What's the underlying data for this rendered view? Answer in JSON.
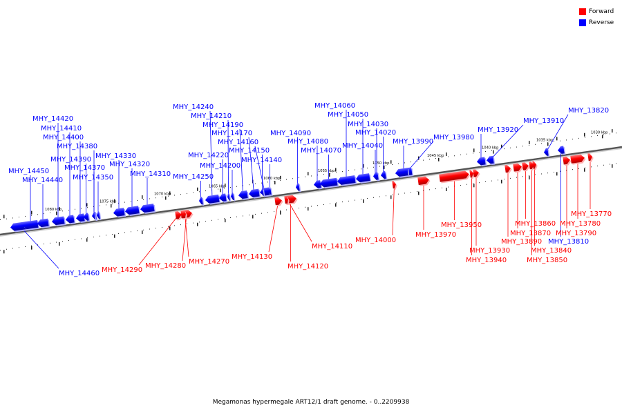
{
  "legend": {
    "forward_label": "Forward",
    "reverse_label": "Reverse",
    "forward_color": "#ff0000",
    "reverse_color": "#0000ff"
  },
  "caption": "Megamonas hypermegale ART12/1 draft genome. - 0..2209938",
  "ticks": [
    "1030 kbp",
    "1035 kbp",
    "1040 kbp",
    "1045 kbp",
    "1050 kbp",
    "1055 kbp",
    "1060 kbp",
    "1065 kbp",
    "1070 kbp",
    "1075 kbp",
    "1080 kbp"
  ],
  "genes": [
    {
      "id": "MHY_14460",
      "strand": "reverse"
    },
    {
      "id": "MHY_14450",
      "strand": "reverse"
    },
    {
      "id": "MHY_14440",
      "strand": "reverse"
    },
    {
      "id": "MHY_14420",
      "strand": "reverse"
    },
    {
      "id": "MHY_14410",
      "strand": "reverse"
    },
    {
      "id": "MHY_14400",
      "strand": "reverse"
    },
    {
      "id": "MHY_14390",
      "strand": "reverse"
    },
    {
      "id": "MHY_14380",
      "strand": "reverse"
    },
    {
      "id": "MHY_14370",
      "strand": "reverse"
    },
    {
      "id": "MHY_14350",
      "strand": "reverse"
    },
    {
      "id": "MHY_14330",
      "strand": "reverse"
    },
    {
      "id": "MHY_14320",
      "strand": "reverse"
    },
    {
      "id": "MHY_14310",
      "strand": "reverse"
    },
    {
      "id": "MHY_14290",
      "strand": "forward"
    },
    {
      "id": "MHY_14280",
      "strand": "forward"
    },
    {
      "id": "MHY_14270",
      "strand": "forward"
    },
    {
      "id": "MHY_14250",
      "strand": "reverse"
    },
    {
      "id": "MHY_14240",
      "strand": "reverse"
    },
    {
      "id": "MHY_14220",
      "strand": "reverse"
    },
    {
      "id": "MHY_14210",
      "strand": "reverse"
    },
    {
      "id": "MHY_14200",
      "strand": "reverse"
    },
    {
      "id": "MHY_14190",
      "strand": "reverse"
    },
    {
      "id": "MHY_14170",
      "strand": "reverse"
    },
    {
      "id": "MHY_14160",
      "strand": "reverse"
    },
    {
      "id": "MHY_14150",
      "strand": "reverse"
    },
    {
      "id": "MHY_14140",
      "strand": "reverse"
    },
    {
      "id": "MHY_14130",
      "strand": "forward"
    },
    {
      "id": "MHY_14120",
      "strand": "forward"
    },
    {
      "id": "MHY_14110",
      "strand": "forward"
    },
    {
      "id": "MHY_14090",
      "strand": "reverse"
    },
    {
      "id": "MHY_14080",
      "strand": "reverse"
    },
    {
      "id": "MHY_14070",
      "strand": "reverse"
    },
    {
      "id": "MHY_14060",
      "strand": "reverse"
    },
    {
      "id": "MHY_14050",
      "strand": "reverse"
    },
    {
      "id": "MHY_14040",
      "strand": "reverse"
    },
    {
      "id": "MHY_14030",
      "strand": "reverse"
    },
    {
      "id": "MHY_14020",
      "strand": "reverse"
    },
    {
      "id": "MHY_14000",
      "strand": "forward"
    },
    {
      "id": "MHY_13990",
      "strand": "reverse"
    },
    {
      "id": "MHY_13980",
      "strand": "reverse"
    },
    {
      "id": "MHY_13970",
      "strand": "forward"
    },
    {
      "id": "MHY_13950",
      "strand": "forward"
    },
    {
      "id": "MHY_13940",
      "strand": "forward"
    },
    {
      "id": "MHY_13930",
      "strand": "forward"
    },
    {
      "id": "MHY_13920",
      "strand": "reverse"
    },
    {
      "id": "MHY_13910",
      "strand": "reverse"
    },
    {
      "id": "MHY_13890",
      "strand": "forward"
    },
    {
      "id": "MHY_13870",
      "strand": "forward"
    },
    {
      "id": "MHY_13860",
      "strand": "forward"
    },
    {
      "id": "MHY_13850",
      "strand": "forward"
    },
    {
      "id": "MHY_13840",
      "strand": "forward"
    },
    {
      "id": "MHY_13820",
      "strand": "reverse"
    },
    {
      "id": "MHY_13810",
      "strand": "reverse"
    },
    {
      "id": "MHY_13790",
      "strand": "forward"
    },
    {
      "id": "MHY_13780",
      "strand": "forward"
    },
    {
      "id": "MHY_13770",
      "strand": "forward"
    }
  ]
}
